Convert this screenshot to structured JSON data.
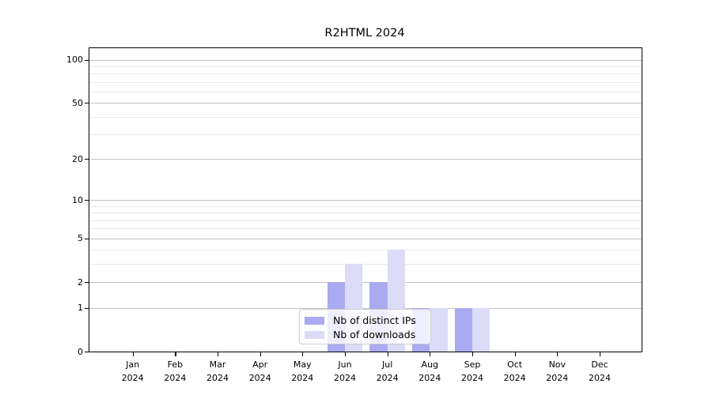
{
  "title": "R2HTML 2024",
  "chart_data": {
    "type": "bar",
    "title": "R2HTML 2024",
    "categories": [
      "Jan 2024",
      "Feb 2024",
      "Mar 2024",
      "Apr 2024",
      "May 2024",
      "Jun 2024",
      "Jul 2024",
      "Aug 2024",
      "Sep 2024",
      "Oct 2024",
      "Nov 2024",
      "Dec 2024"
    ],
    "series": [
      {
        "name": "Nb of distinct IPs",
        "color": "#aaaaf0",
        "values": [
          0,
          0,
          0,
          0,
          0,
          2,
          2,
          1,
          1,
          0,
          0,
          0
        ]
      },
      {
        "name": "Nb of downloads",
        "color": "#dcdcf8",
        "values": [
          0,
          0,
          0,
          0,
          0,
          3,
          4,
          1,
          1,
          0,
          0,
          0
        ]
      }
    ],
    "xlabel": "",
    "ylabel": "",
    "y_scale": "log1p",
    "y_ticks": [
      0,
      1,
      2,
      5,
      10,
      20,
      50,
      100
    ],
    "y_minor_gridlines": [
      3,
      4,
      6,
      7,
      8,
      9,
      30,
      40,
      60,
      70,
      80,
      90
    ],
    "ylim": [
      0,
      120
    ],
    "grid": "on",
    "legend_position": "lower center inside plot"
  },
  "legend": {
    "items": [
      {
        "label": "Nb of distinct IPs",
        "color": "#aaaaf0"
      },
      {
        "label": "Nb of downloads",
        "color": "#dcdcf8"
      }
    ]
  }
}
